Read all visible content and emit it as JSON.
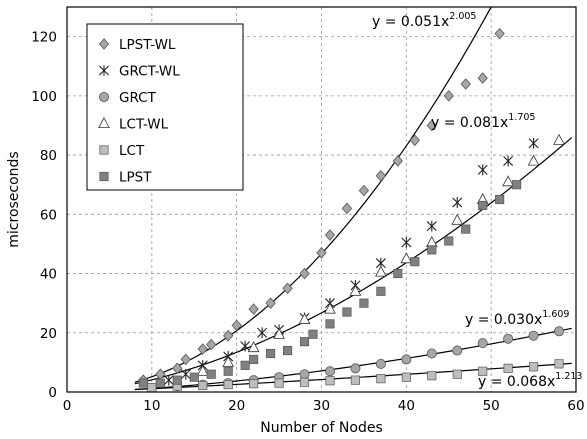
{
  "chart_data": {
    "type": "scatter",
    "xlabel": "Number of Nodes",
    "ylabel": "microseconds",
    "xlim": [
      0,
      60
    ],
    "ylim": [
      0,
      130
    ],
    "xticks": [
      0,
      10,
      20,
      30,
      40,
      50,
      60
    ],
    "yticks": [
      0,
      20,
      40,
      60,
      80,
      100,
      120
    ],
    "grid": true,
    "legend_position": "top-left",
    "series": [
      {
        "name": "LPST-WL",
        "marker": "diamond",
        "color": "#a6a6a6",
        "x": [
          9,
          11,
          13,
          14,
          16,
          17,
          19,
          20,
          22,
          24,
          26,
          28,
          30,
          31,
          33,
          35,
          37,
          39,
          41,
          43,
          45,
          47,
          49,
          51
        ],
        "y": [
          4,
          6,
          8,
          11,
          14.5,
          16,
          19,
          22.5,
          28,
          30,
          35,
          40,
          47,
          53,
          62,
          68,
          73,
          78,
          85,
          90,
          100,
          104,
          106,
          121
        ]
      },
      {
        "name": "GRCT-WL",
        "marker": "asterisk",
        "color": "#222222",
        "x": [
          12,
          14,
          16,
          19,
          21,
          23,
          25,
          28,
          31,
          34,
          37,
          40,
          43,
          46,
          49,
          52,
          55
        ],
        "y": [
          4,
          6,
          9,
          12,
          15.5,
          20,
          21,
          25,
          30,
          36,
          43.5,
          50.5,
          56,
          64,
          75,
          78,
          84
        ]
      },
      {
        "name": "GRCT",
        "marker": "circle",
        "color": "#a6a6a6",
        "x": [
          13,
          16,
          19,
          22,
          25,
          28,
          31,
          34,
          37,
          40,
          43,
          46,
          49,
          52,
          55,
          58
        ],
        "y": [
          2,
          2.5,
          3,
          4,
          5,
          6,
          7,
          8,
          9.5,
          11,
          13,
          14,
          16.5,
          18,
          19,
          20.5
        ]
      },
      {
        "name": "LCT-WL",
        "marker": "triangle",
        "color": "#ffffff",
        "x": [
          13,
          16,
          19,
          22,
          25,
          28,
          31,
          34,
          37,
          40,
          43,
          46,
          49,
          52,
          55,
          58
        ],
        "y": [
          3,
          7,
          10,
          15,
          19.5,
          24.5,
          28,
          34,
          40.5,
          45,
          50.5,
          58,
          65,
          71,
          78,
          85
        ]
      },
      {
        "name": "LCT",
        "marker": "square",
        "color": "#bdbdbd",
        "x": [
          10,
          13,
          16,
          19,
          22,
          25,
          28,
          31,
          34,
          37,
          40,
          43,
          46,
          49,
          52,
          55,
          58
        ],
        "y": [
          1.5,
          2,
          2.2,
          2.5,
          2.8,
          3,
          3.3,
          3.8,
          4,
          4.5,
          5,
          5.5,
          6,
          7,
          8,
          8.5,
          9.5
        ]
      },
      {
        "name": "LPST",
        "marker": "square",
        "color": "#808080",
        "x": [
          9,
          11,
          13,
          15,
          17,
          19,
          21,
          22,
          24,
          26,
          28,
          29,
          31,
          33,
          35,
          37,
          39,
          41,
          43,
          45,
          47,
          49,
          51,
          53
        ],
        "y": [
          3,
          3,
          4,
          5,
          6,
          7,
          9,
          11,
          13,
          14,
          17,
          19.5,
          23,
          27,
          30,
          34,
          40,
          44,
          48,
          51,
          55,
          63,
          65,
          70
        ]
      }
    ],
    "fits": [
      {
        "label": "y = 0.051x",
        "exponent": "2.005",
        "a": 0.051,
        "b": 2.005,
        "x_range": [
          8,
          50.9
        ]
      },
      {
        "label": "y = 0.081x",
        "exponent": "1.705",
        "a": 0.081,
        "b": 1.705,
        "x_range": [
          8,
          59.5
        ]
      },
      {
        "label": "y = 0.030x",
        "exponent": "1.609",
        "a": 0.03,
        "b": 1.609,
        "x_range": [
          8,
          59.5
        ]
      },
      {
        "label": "y = 0.068x",
        "exponent": "1.213",
        "a": 0.068,
        "b": 1.213,
        "x_range": [
          8,
          59.5
        ]
      }
    ]
  }
}
